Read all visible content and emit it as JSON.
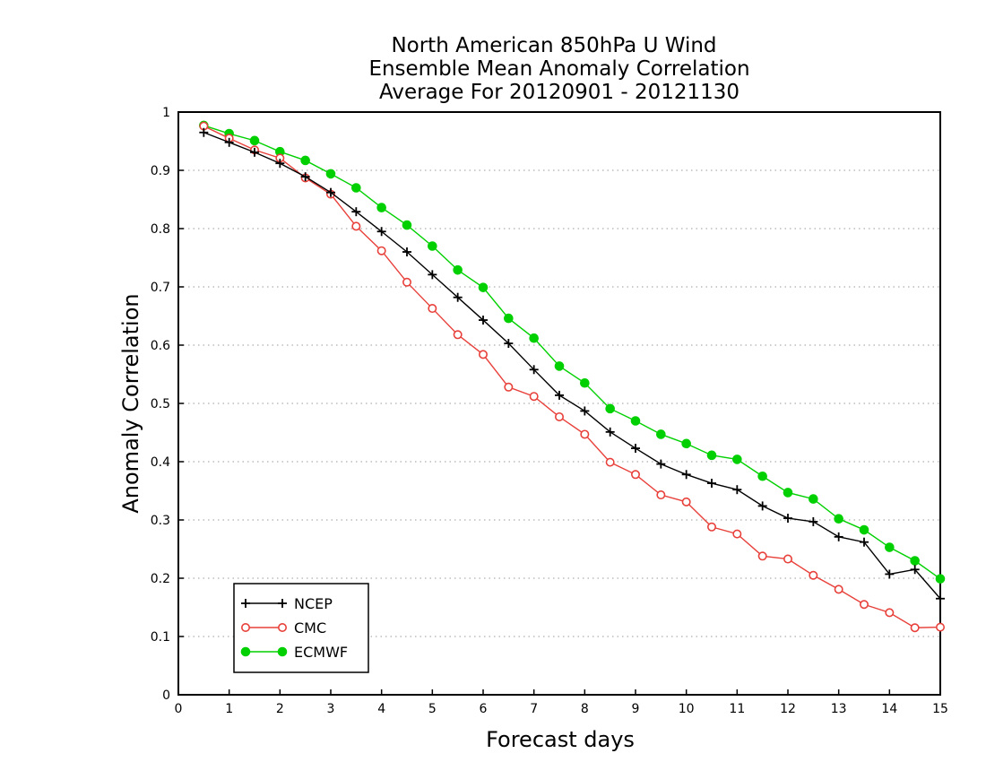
{
  "chart_data": {
    "type": "line",
    "title_lines": [
      "North American 850hPa U Wind",
      "Ensemble Mean Anomaly Correlation",
      "Average For 20120901 - 20121130"
    ],
    "xlabel": "Forecast days",
    "ylabel": "Anomaly Correlation",
    "xlim": [
      0,
      15
    ],
    "ylim": [
      0,
      1
    ],
    "xticks": [
      "0",
      "1",
      "2",
      "3",
      "4",
      "5",
      "6",
      "7",
      "8",
      "9",
      "10",
      "11",
      "12",
      "13",
      "14",
      "15"
    ],
    "yticks": [
      "0",
      "0.1",
      "0.2",
      "0.3",
      "0.4",
      "0.5",
      "0.6",
      "0.7",
      "0.8",
      "0.9",
      "1"
    ],
    "grid": "horizontal dotted",
    "legend_position": "bottom-left",
    "x": [
      0.5,
      1,
      1.5,
      2,
      2.5,
      3,
      3.5,
      4,
      4.5,
      5,
      5.5,
      6,
      6.5,
      7,
      7.5,
      8,
      8.5,
      9,
      9.5,
      10,
      10.5,
      11,
      11.5,
      12,
      12.5,
      13,
      13.5,
      14,
      14.5,
      15
    ],
    "series": [
      {
        "name": "NCEP",
        "color": "#000000",
        "marker": "plus",
        "values": [
          0.965,
          0.948,
          0.931,
          0.912,
          0.889,
          0.862,
          0.829,
          0.795,
          0.76,
          0.721,
          0.682,
          0.643,
          0.603,
          0.558,
          0.514,
          0.487,
          0.451,
          0.423,
          0.396,
          0.378,
          0.363,
          0.352,
          0.324,
          0.303,
          0.297,
          0.271,
          0.262,
          0.207,
          0.215,
          0.165
        ]
      },
      {
        "name": "CMC",
        "color": "#e8403a",
        "marker": "open-circle",
        "values": [
          0.976,
          0.955,
          0.935,
          0.921,
          0.887,
          0.859,
          0.804,
          0.762,
          0.708,
          0.663,
          0.618,
          0.584,
          0.528,
          0.512,
          0.477,
          0.447,
          0.399,
          0.378,
          0.343,
          0.331,
          0.288,
          0.276,
          0.238,
          0.233,
          0.205,
          0.181,
          0.155,
          0.141,
          0.115,
          0.116
        ]
      },
      {
        "name": "ECMWF",
        "color": "#00d000",
        "marker": "filled-circle",
        "values": [
          0.977,
          0.963,
          0.951,
          0.932,
          0.917,
          0.894,
          0.87,
          0.836,
          0.806,
          0.77,
          0.729,
          0.699,
          0.646,
          0.612,
          0.564,
          0.535,
          0.491,
          0.47,
          0.447,
          0.431,
          0.411,
          0.404,
          0.375,
          0.347,
          0.336,
          0.302,
          0.283,
          0.253,
          0.23,
          0.199
        ]
      }
    ]
  }
}
